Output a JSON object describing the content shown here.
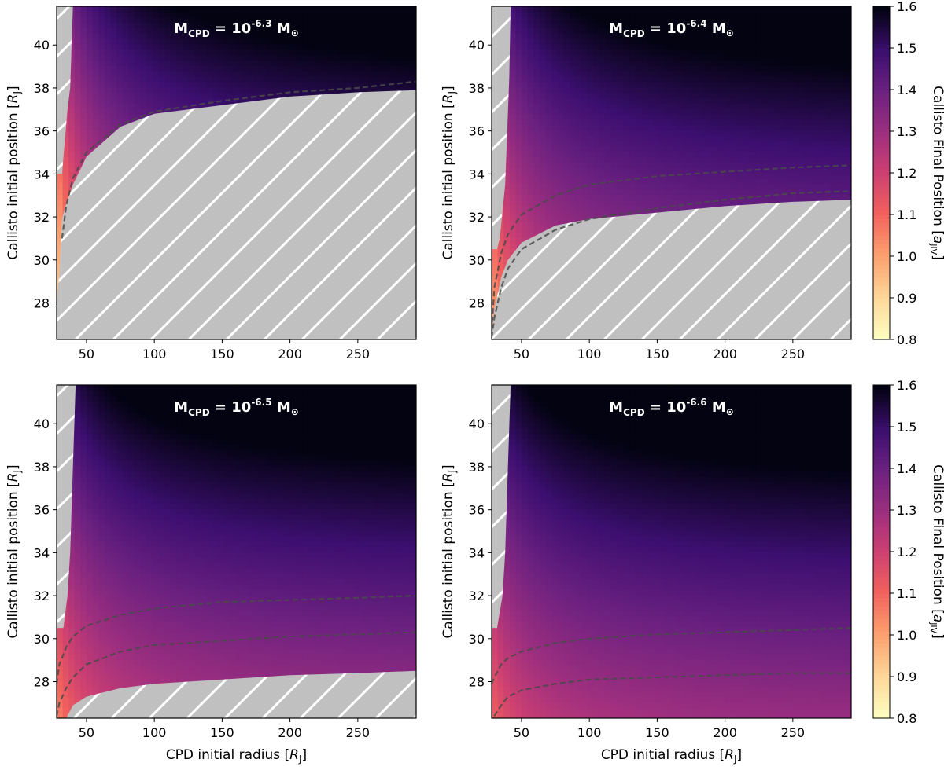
{
  "chart_data": {
    "type": "heatmap",
    "colormap": "magma_r",
    "shared": {
      "xlabel": "CPD initial radius",
      "xlabel_unit": "R",
      "xlabel_unit_sub": "J",
      "ylabel": "Callisto initial position",
      "ylabel_unit": "R",
      "ylabel_unit_sub": "J",
      "xlim": [
        28,
        293
      ],
      "ylim": [
        26.3,
        41.8
      ],
      "xticks": [
        50,
        100,
        150,
        200,
        250
      ],
      "yticks": [
        28,
        30,
        32,
        34,
        36,
        38,
        40
      ],
      "unstable_region_fill": "#c0c0c0",
      "hatch_color": "#ffffff"
    },
    "colorbar": {
      "label": "Callisto Final Position",
      "label_unit": "a",
      "label_unit_sub": "JIV",
      "ticks": [
        "0.8",
        "0.9",
        "1.0",
        "1.1",
        "1.2",
        "1.3",
        "1.4",
        "1.5",
        "1.6"
      ],
      "range": [
        0.8,
        1.6
      ]
    },
    "panels": [
      {
        "title": "M",
        "title_sub": "CPD",
        "title_eq": " = 10",
        "title_exp": "-6.3",
        "title_unit": " M",
        "title_sun": "⊙",
        "mass_exp": -6.3,
        "show_xlabel": false,
        "show_colorbar": false,
        "color_model": {
          "a0": 0.56,
          "b": 0.0275,
          "k": 0.42
        },
        "lower_boundary": [
          [
            28,
            27.9
          ],
          [
            30,
            29.4
          ],
          [
            32,
            31.9
          ],
          [
            34,
            32.4
          ],
          [
            40,
            33.5
          ],
          [
            50,
            34.8
          ],
          [
            75,
            36.2
          ],
          [
            100,
            36.8
          ],
          [
            150,
            37.2
          ],
          [
            200,
            37.6
          ],
          [
            250,
            37.8
          ],
          [
            293,
            37.9
          ]
        ],
        "left_boundary": [
          [
            40,
            41.8
          ],
          [
            38,
            38.0
          ],
          [
            36,
            37.0
          ],
          [
            34,
            35.5
          ],
          [
            32,
            34.0
          ]
        ],
        "dashed_curves": [
          [
            [
              32,
              31.0
            ],
            [
              35,
              32.5
            ],
            [
              40,
              33.8
            ],
            [
              50,
              35.0
            ],
            [
              75,
              36.3
            ],
            [
              100,
              36.9
            ],
            [
              150,
              37.4
            ],
            [
              200,
              37.8
            ],
            [
              250,
              38.0
            ],
            [
              293,
              38.3
            ]
          ]
        ]
      },
      {
        "title": "M",
        "title_sub": "CPD",
        "title_eq": " = 10",
        "title_exp": "-6.4",
        "title_unit": " M",
        "title_sun": "⊙",
        "mass_exp": -6.4,
        "show_xlabel": false,
        "show_colorbar": true,
        "color_model": {
          "a0": 0.6,
          "b": 0.0265,
          "k": 0.32
        },
        "lower_boundary": [
          [
            28,
            26.6
          ],
          [
            30,
            27.7
          ],
          [
            35,
            29.2
          ],
          [
            40,
            30.0
          ],
          [
            50,
            30.8
          ],
          [
            75,
            31.6
          ],
          [
            100,
            31.9
          ],
          [
            150,
            32.2
          ],
          [
            200,
            32.5
          ],
          [
            250,
            32.7
          ],
          [
            293,
            32.8
          ]
        ],
        "left_boundary": [
          [
            42,
            41.8
          ],
          [
            41,
            38.5
          ],
          [
            38,
            33.5
          ],
          [
            34,
            31.0
          ],
          [
            32,
            30.5
          ]
        ],
        "dashed_curves": [
          [
            [
              28,
              26.7
            ],
            [
              30,
              28.7
            ],
            [
              35,
              30.3
            ],
            [
              40,
              31.2
            ],
            [
              50,
              32.1
            ],
            [
              75,
              33.0
            ],
            [
              100,
              33.5
            ],
            [
              150,
              33.9
            ],
            [
              200,
              34.1
            ],
            [
              250,
              34.3
            ],
            [
              293,
              34.4
            ]
          ],
          [
            [
              28,
              26.4
            ],
            [
              30,
              27.3
            ],
            [
              35,
              28.7
            ],
            [
              40,
              29.6
            ],
            [
              50,
              30.5
            ],
            [
              75,
              31.4
            ],
            [
              100,
              31.9
            ],
            [
              150,
              32.4
            ],
            [
              200,
              32.8
            ],
            [
              250,
              33.1
            ],
            [
              293,
              33.2
            ]
          ]
        ]
      },
      {
        "title": "M",
        "title_sub": "CPD",
        "title_eq": " = 10",
        "title_exp": "-6.5",
        "title_unit": " M",
        "title_sun": "⊙",
        "mass_exp": -6.5,
        "show_xlabel": true,
        "show_colorbar": false,
        "color_model": {
          "a0": 0.64,
          "b": 0.0258,
          "k": 0.26
        },
        "lower_boundary": [
          [
            28,
            26.3
          ],
          [
            35,
            26.3
          ],
          [
            40,
            26.9
          ],
          [
            50,
            27.3
          ],
          [
            75,
            27.7
          ],
          [
            100,
            27.9
          ],
          [
            150,
            28.1
          ],
          [
            200,
            28.3
          ],
          [
            250,
            28.4
          ],
          [
            293,
            28.5
          ]
        ],
        "left_boundary": [
          [
            42,
            41.8
          ],
          [
            40,
            38.0
          ],
          [
            38,
            34.0
          ],
          [
            36,
            32.0
          ],
          [
            33,
            30.5
          ]
        ],
        "dashed_curves": [
          [
            [
              28,
              27.9
            ],
            [
              30,
              28.8
            ],
            [
              35,
              29.6
            ],
            [
              40,
              30.1
            ],
            [
              50,
              30.6
            ],
            [
              75,
              31.1
            ],
            [
              100,
              31.4
            ],
            [
              150,
              31.7
            ],
            [
              200,
              31.8
            ],
            [
              250,
              31.9
            ],
            [
              293,
              32.0
            ]
          ],
          [
            [
              28,
              26.4
            ],
            [
              30,
              27.0
            ],
            [
              35,
              27.7
            ],
            [
              40,
              28.2
            ],
            [
              50,
              28.8
            ],
            [
              75,
              29.4
            ],
            [
              100,
              29.7
            ],
            [
              150,
              29.9
            ],
            [
              200,
              30.1
            ],
            [
              250,
              30.2
            ],
            [
              293,
              30.3
            ]
          ]
        ]
      },
      {
        "title": "M",
        "title_sub": "CPD",
        "title_eq": " = 10",
        "title_exp": "-6.6",
        "title_unit": " M",
        "title_sun": "⊙",
        "mass_exp": -6.6,
        "show_xlabel": true,
        "show_colorbar": true,
        "color_model": {
          "a0": 0.67,
          "b": 0.0252,
          "k": 0.22
        },
        "lower_boundary": [],
        "left_boundary": [
          [
            42,
            41.8
          ],
          [
            40,
            38.0
          ],
          [
            38,
            34.0
          ],
          [
            36,
            32.0
          ],
          [
            32,
            30.5
          ]
        ],
        "dashed_curves": [
          [
            [
              28,
              27.9
            ],
            [
              30,
              28.2
            ],
            [
              35,
              28.8
            ],
            [
              40,
              29.1
            ],
            [
              50,
              29.4
            ],
            [
              75,
              29.8
            ],
            [
              100,
              30.0
            ],
            [
              150,
              30.2
            ],
            [
              200,
              30.3
            ],
            [
              250,
              30.4
            ],
            [
              293,
              30.5
            ]
          ],
          [
            [
              30,
              26.4
            ],
            [
              35,
              26.9
            ],
            [
              40,
              27.3
            ],
            [
              50,
              27.6
            ],
            [
              75,
              27.9
            ],
            [
              100,
              28.1
            ],
            [
              150,
              28.2
            ],
            [
              200,
              28.3
            ],
            [
              250,
              28.4
            ],
            [
              293,
              28.4
            ]
          ]
        ]
      }
    ]
  }
}
